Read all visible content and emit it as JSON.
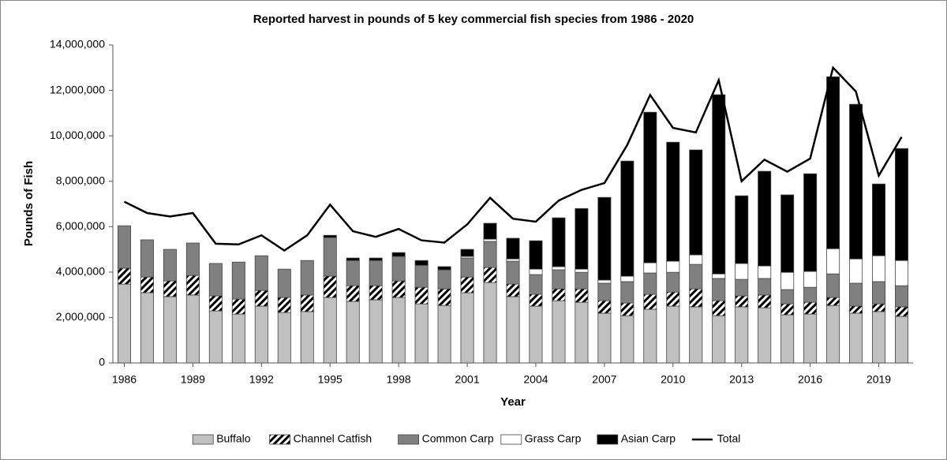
{
  "chart_data": {
    "type": "bar",
    "stacked": true,
    "title": "Reported harvest in pounds of 5 key commercial fish species from 1986 - 2020",
    "x_label": "Year",
    "y_label": "Pounds of Fish",
    "x": [
      1986,
      1987,
      1988,
      1989,
      1990,
      1991,
      1992,
      1993,
      1994,
      1995,
      1996,
      1997,
      1998,
      1999,
      2000,
      2001,
      2002,
      2003,
      2004,
      2005,
      2006,
      2007,
      2008,
      2009,
      2010,
      2011,
      2012,
      2013,
      2014,
      2015,
      2016,
      2017,
      2018,
      2019,
      2020
    ],
    "xlim": [
      1985.5,
      2020.5
    ],
    "xticks": [
      1986,
      1989,
      1992,
      1995,
      1998,
      2001,
      2004,
      2007,
      2010,
      2013,
      2016,
      2019
    ],
    "ylim": [
      0,
      14000000
    ],
    "yticks": [
      {
        "value": 0,
        "label": "0"
      },
      {
        "value": 2000000,
        "label": "2,000,000"
      },
      {
        "value": 4000000,
        "label": "4,000,000"
      },
      {
        "value": 6000000,
        "label": "6,000,000"
      },
      {
        "value": 8000000,
        "label": "8,000,000"
      },
      {
        "value": 10000000,
        "label": "10,000,000"
      },
      {
        "value": 12000000,
        "label": "12,000,000"
      },
      {
        "value": 14000000,
        "label": "14,000,000"
      }
    ],
    "grid": false,
    "legend": "bottom",
    "series": [
      {
        "name": "Buffalo",
        "color": "#c0c0c0",
        "values": [
          3470000,
          3090000,
          2920000,
          2990000,
          2290000,
          2150000,
          2500000,
          2220000,
          2260000,
          2880000,
          2710000,
          2780000,
          2880000,
          2600000,
          2530000,
          3090000,
          3540000,
          2920000,
          2500000,
          2740000,
          2670000,
          2190000,
          2080000,
          2360000,
          2500000,
          2470000,
          2080000,
          2470000,
          2430000,
          2120000,
          2150000,
          2530000,
          2190000,
          2260000,
          2050000
        ]
      },
      {
        "name": "Channel Catfish",
        "color": "#000000",
        "pattern": "hatch",
        "values": [
          700000,
          690000,
          690000,
          860000,
          660000,
          660000,
          690000,
          660000,
          730000,
          940000,
          690000,
          620000,
          730000,
          730000,
          730000,
          690000,
          660000,
          550000,
          520000,
          520000,
          590000,
          550000,
          560000,
          660000,
          620000,
          790000,
          660000,
          480000,
          560000,
          480000,
          520000,
          350000,
          310000,
          340000,
          420000
        ]
      },
      {
        "name": "Common Carp",
        "color": "#808080",
        "values": [
          1870000,
          1640000,
          1390000,
          1430000,
          1430000,
          1630000,
          1530000,
          1250000,
          1520000,
          1700000,
          1110000,
          1110000,
          1080000,
          970000,
          840000,
          840000,
          1150000,
          1010000,
          870000,
          840000,
          730000,
          770000,
          940000,
          940000,
          870000,
          1080000,
          980000,
          730000,
          730000,
          630000,
          660000,
          1040000,
          1010000,
          980000,
          930000
        ]
      },
      {
        "name": "Grass Carp",
        "color": "#ffffff",
        "values": [
          0,
          0,
          0,
          0,
          0,
          0,
          0,
          0,
          0,
          0,
          0,
          0,
          0,
          0,
          0,
          70000,
          100000,
          100000,
          240000,
          140000,
          140000,
          140000,
          240000,
          450000,
          490000,
          420000,
          200000,
          700000,
          550000,
          760000,
          700000,
          1110000,
          1070000,
          1140000,
          1110000
        ]
      },
      {
        "name": "Asian Carp",
        "color": "#000000",
        "values": [
          0,
          0,
          0,
          0,
          0,
          0,
          0,
          0,
          0,
          100000,
          110000,
          110000,
          170000,
          210000,
          140000,
          310000,
          700000,
          910000,
          1250000,
          2150000,
          2670000,
          3640000,
          5070000,
          6630000,
          5240000,
          4620000,
          7890000,
          2980000,
          4170000,
          3410000,
          4300000,
          7570000,
          6810000,
          3160000,
          4930000
        ]
      },
      {
        "name": "Total",
        "color": "#000000",
        "type": "line",
        "values": [
          7100000,
          6600000,
          6450000,
          6600000,
          5250000,
          5220000,
          5620000,
          4950000,
          5620000,
          6970000,
          5800000,
          5550000,
          5900000,
          5400000,
          5300000,
          6100000,
          7270000,
          6350000,
          6220000,
          7150000,
          7620000,
          7920000,
          9600000,
          11800000,
          10350000,
          10150000,
          12450000,
          8000000,
          8950000,
          8420000,
          9000000,
          13000000,
          11950000,
          8250000,
          9950000
        ]
      }
    ]
  }
}
